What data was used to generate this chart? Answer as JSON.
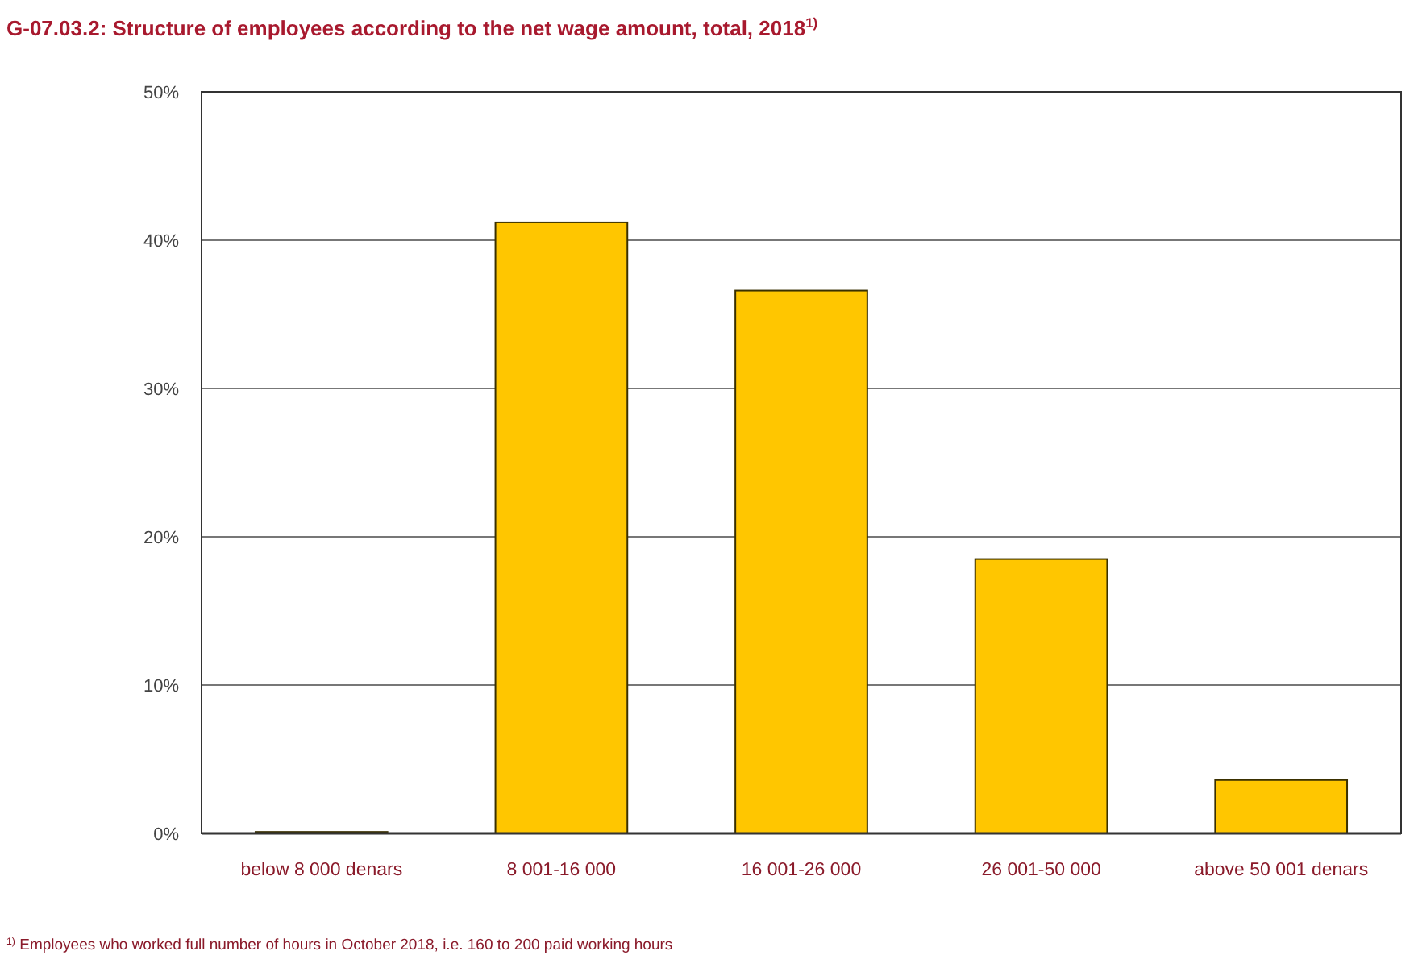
{
  "chart_data": {
    "type": "bar",
    "title": "G-07.03.2: Structure of employees according to the net wage amount, total, 2018$^{1)}$",
    "categories": [
      "below 8 000 denars",
      "8 001-16 000",
      "16 001-26 000",
      "26 001-50 000",
      "above 50 001 denars"
    ],
    "values": [
      0.1,
      41.2,
      36.6,
      18.5,
      3.6
    ],
    "color": "#ffc600",
    "ylim": [
      0,
      50
    ],
    "yticks": [
      {
        "value": 0,
        "label": "0%"
      },
      {
        "value": 10,
        "label": "10%"
      },
      {
        "value": 20,
        "label": "20%"
      },
      {
        "value": 30,
        "label": "30%"
      },
      {
        "value": 40,
        "label": "40%"
      },
      {
        "value": 50,
        "label": "50%"
      }
    ],
    "grid": "y",
    "annotations": [
      "$^{1)}$ Employees who worked full number of hours in October 2018, i.e. 160 to 200 paid working hours"
    ]
  }
}
